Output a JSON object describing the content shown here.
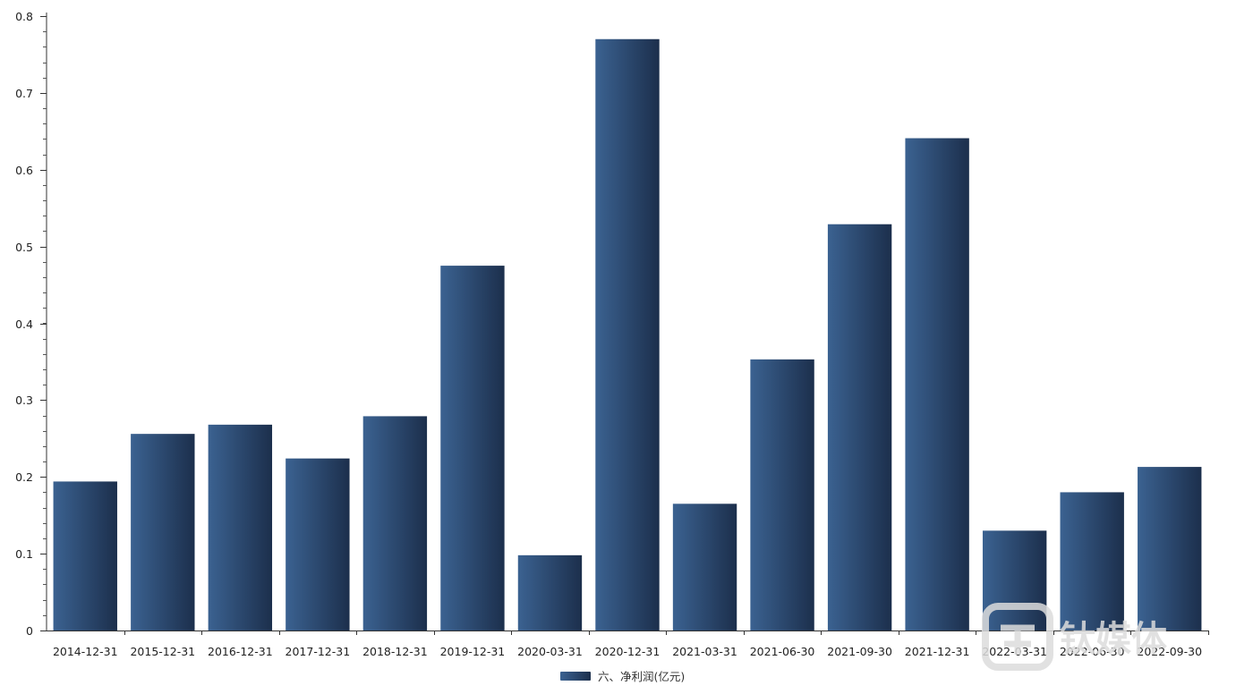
{
  "chart_data": {
    "type": "bar",
    "title": "",
    "xlabel": "",
    "ylabel": "",
    "categories": [
      "2014-12-31",
      "2015-12-31",
      "2016-12-31",
      "2017-12-31",
      "2018-12-31",
      "2019-12-31",
      "2020-03-31",
      "2020-12-31",
      "2021-03-31",
      "2021-06-30",
      "2021-09-30",
      "2021-12-31",
      "2022-03-31",
      "2022-06-30",
      "2022-09-30"
    ],
    "series": [
      {
        "name": "六、净利润(亿元)",
        "values": [
          0.194,
          0.256,
          0.268,
          0.224,
          0.279,
          0.475,
          0.098,
          0.77,
          0.165,
          0.353,
          0.529,
          0.641,
          0.13,
          0.18,
          0.213
        ],
        "color_light": "#3b6291",
        "color_dark": "#1c2f4c"
      }
    ],
    "ylim": [
      0,
      0.8
    ],
    "yticks": [
      "0",
      "0.1",
      "0.2",
      "0.3",
      "0.4",
      "0.5",
      "0.6",
      "0.7",
      "0.8"
    ],
    "grid": false,
    "legend_position": "bottom-center"
  },
  "watermark": {
    "text": "钛媒体"
  }
}
